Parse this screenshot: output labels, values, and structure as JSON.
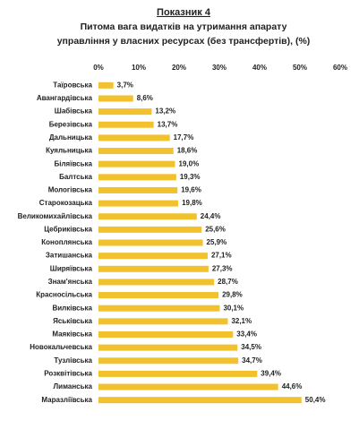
{
  "chart_data": {
    "type": "bar",
    "orientation": "horizontal",
    "title": "Показник 4",
    "subtitle": [
      "Питома вага видатків на утримання апарату",
      "управління у власних ресурсах (без трансфертів), (%)"
    ],
    "categories": [
      "Таїровська",
      "Авангардівська",
      "Шабівська",
      "Березівська",
      "Дальницька",
      "Куяльницька",
      "Біляївська",
      "Балтська",
      "Мологівська",
      "Старокозацька",
      "Великомихайлівська",
      "Цебриківська",
      "Коноплянська",
      "Затишанська",
      "Ширяївська",
      "Знам'янська",
      "Красносільська",
      "Вилківська",
      "Яськівська",
      "Маяківська",
      "Новокальчевська",
      "Тузлівська",
      "Розквітівська",
      "Лиманська",
      "Маразліївська"
    ],
    "values": [
      3.7,
      8.6,
      13.2,
      13.7,
      17.7,
      18.6,
      19.0,
      19.3,
      19.6,
      19.8,
      24.4,
      25.6,
      25.9,
      27.1,
      27.3,
      28.7,
      29.8,
      30.1,
      32.1,
      33.4,
      34.5,
      34.7,
      39.4,
      44.6,
      50.4
    ],
    "value_labels": [
      "3,7%",
      "8,6%",
      "13,2%",
      "13,7%",
      "17,7%",
      "18,6%",
      "19,0%",
      "19,3%",
      "19,6%",
      "19,8%",
      "24,4%",
      "25,6%",
      "25,9%",
      "27,1%",
      "27,3%",
      "28,7%",
      "29,8%",
      "30,1%",
      "32,1%",
      "33,4%",
      "34,5%",
      "34,7%",
      "39,4%",
      "44,6%",
      "50,4%"
    ],
    "color": "#f2c12e",
    "xlim": [
      0,
      60
    ],
    "xticks": [
      {
        "value": 0,
        "label": "0%"
      },
      {
        "value": 10,
        "label": "10%"
      },
      {
        "value": 20,
        "label": "20%"
      },
      {
        "value": 30,
        "label": "30%"
      },
      {
        "value": 40,
        "label": "40%"
      },
      {
        "value": 50,
        "label": "50%"
      },
      {
        "value": 60,
        "label": "60%"
      }
    ]
  }
}
